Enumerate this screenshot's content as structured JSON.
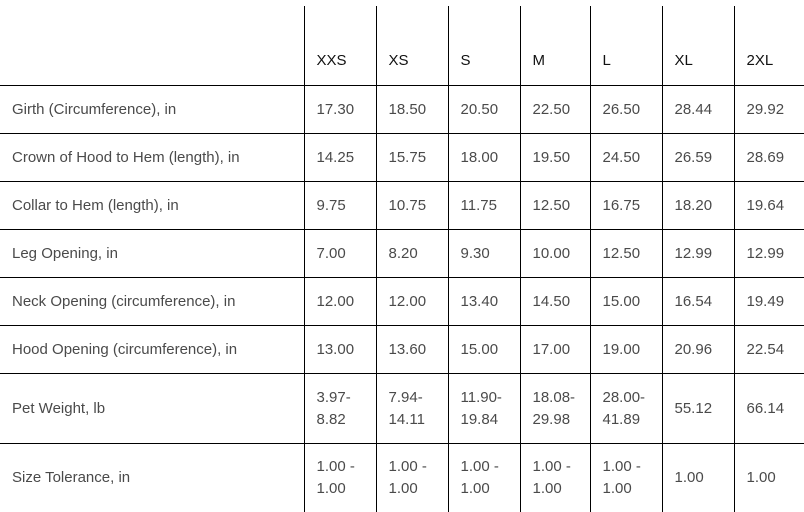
{
  "sizes": [
    "XXS",
    "XS",
    "S",
    "M",
    "L",
    "XL",
    "2XL"
  ],
  "rows": [
    {
      "label": "Girth (Circumference), in",
      "values": [
        "17.30",
        "18.50",
        "20.50",
        "22.50",
        "26.50",
        "28.44",
        "29.92"
      ]
    },
    {
      "label": "Crown of Hood to Hem (length), in",
      "values": [
        "14.25",
        "15.75",
        "18.00",
        "19.50",
        "24.50",
        "26.59",
        "28.69"
      ]
    },
    {
      "label": "Collar to Hem (length), in",
      "values": [
        "9.75",
        "10.75",
        "11.75",
        "12.50",
        "16.75",
        "18.20",
        "19.64"
      ]
    },
    {
      "label": "Leg Opening, in",
      "values": [
        "7.00",
        "8.20",
        "9.30",
        "10.00",
        "12.50",
        "12.99",
        "12.99"
      ]
    },
    {
      "label": "Neck Opening (circumference), in",
      "values": [
        "12.00",
        "12.00",
        "13.40",
        "14.50",
        "15.00",
        "16.54",
        "19.49"
      ]
    },
    {
      "label": "Hood Opening (circumference), in",
      "values": [
        "13.00",
        "13.60",
        "15.00",
        "17.00",
        "19.00",
        "20.96",
        "22.54"
      ]
    },
    {
      "label": "Pet Weight, lb",
      "values": [
        "3.97-\n8.82",
        "7.94-\n14.11",
        "11.90-\n19.84",
        "18.08-\n29.98",
        "28.00-\n41.89",
        "55.12",
        "66.14"
      ]
    },
    {
      "label": "Size Tolerance, in",
      "values": [
        "1.00 -\n1.00",
        "1.00 -\n1.00",
        "1.00 -\n1.00",
        "1.00 -\n1.00",
        "1.00 -\n1.00",
        "1.00",
        "1.00"
      ]
    }
  ]
}
